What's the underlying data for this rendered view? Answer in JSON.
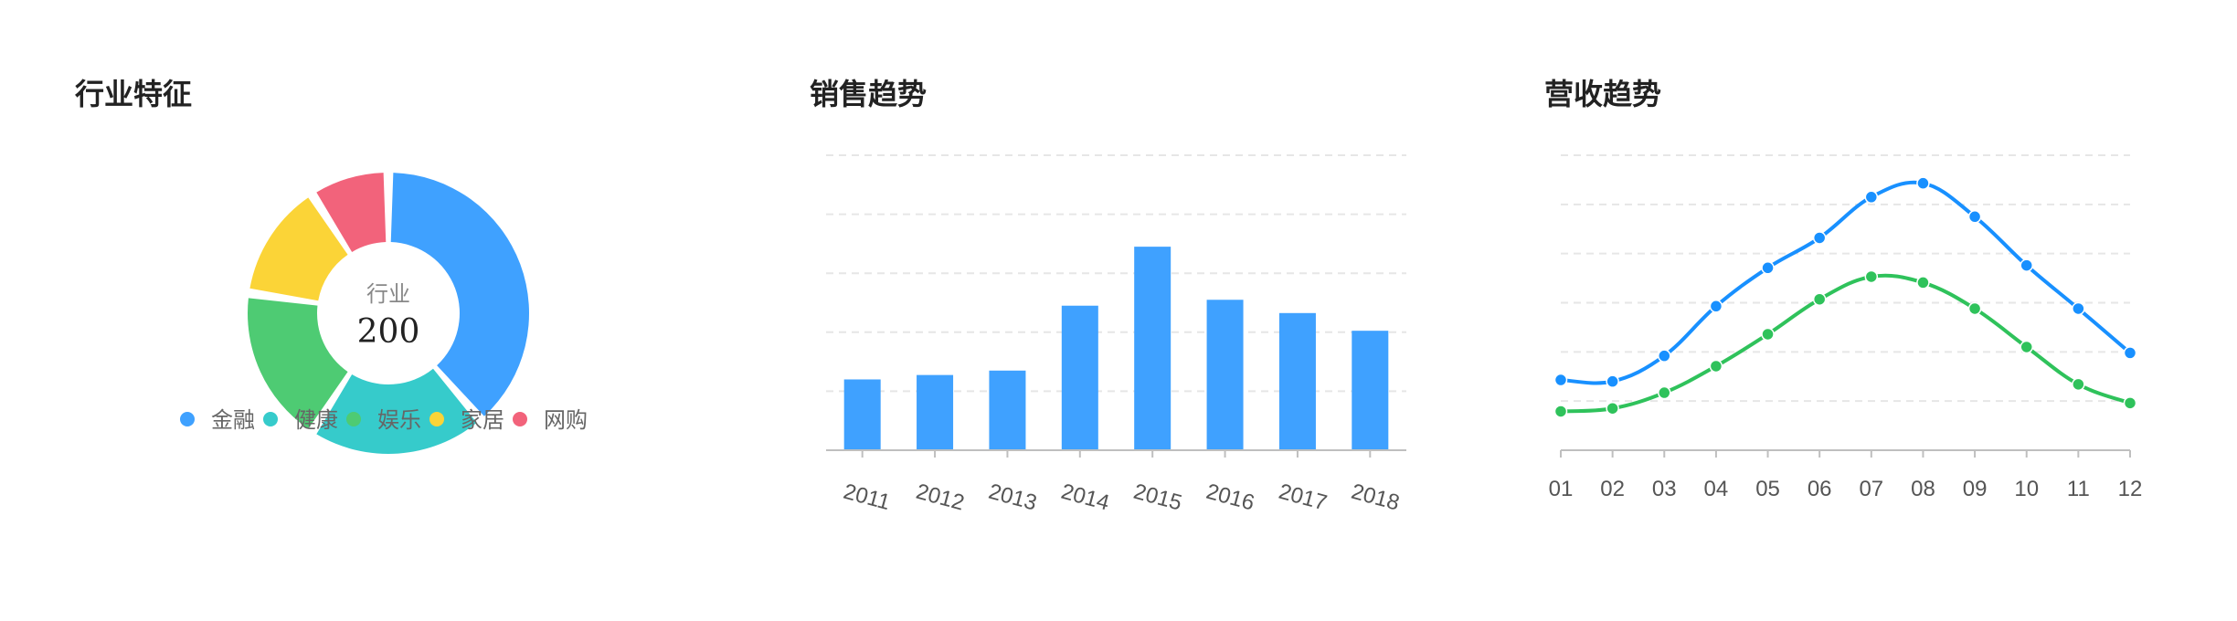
{
  "panels": {
    "industry": {
      "title": "行业特征"
    },
    "sales": {
      "title": "销售趋势"
    },
    "revenue": {
      "title": "营收趋势"
    }
  },
  "chart_data": [
    {
      "type": "pie",
      "title": "行业特征",
      "center_label": "行业",
      "center_value": "200",
      "slices": [
        {
          "name": "金融",
          "value": 34,
          "color": "#3fa1ff"
        },
        {
          "name": "健康",
          "value": 18,
          "color": "#36cbcb"
        },
        {
          "name": "娱乐",
          "value": 16,
          "color": "#4ecb73"
        },
        {
          "name": "家居",
          "value": 12,
          "color": "#fbd437"
        },
        {
          "name": "网购",
          "value": 8,
          "color": "#f2637b"
        }
      ],
      "legend_position": "bottom"
    },
    {
      "type": "bar",
      "title": "销售趋势",
      "categories": [
        "2011",
        "2012",
        "2013",
        "2014",
        "2015",
        "2016",
        "2017",
        "2018"
      ],
      "values": [
        24,
        25.5,
        27,
        49,
        69,
        51,
        46.5,
        40.5
      ],
      "ylim": [
        0,
        100
      ],
      "grid": true,
      "bar_color": "#3fa1ff"
    },
    {
      "type": "line",
      "title": "营收趋势",
      "x": [
        "01",
        "02",
        "03",
        "04",
        "05",
        "06",
        "07",
        "08",
        "09",
        "10",
        "11",
        "12"
      ],
      "series": [
        {
          "color": "#1890ff",
          "values": [
            14.3,
            14.0,
            19.2,
            29.3,
            37.1,
            43.2,
            51.5,
            54.3,
            47.5,
            37.6,
            28.8,
            19.8
          ]
        },
        {
          "color": "#2fc25b",
          "values": [
            7.9,
            8.5,
            11.7,
            17.1,
            23.6,
            30.7,
            35.3,
            34.1,
            28.8,
            21.0,
            13.4,
            9.6
          ]
        }
      ],
      "ylim": [
        0,
        60
      ],
      "grid": true,
      "smooth": true
    }
  ]
}
